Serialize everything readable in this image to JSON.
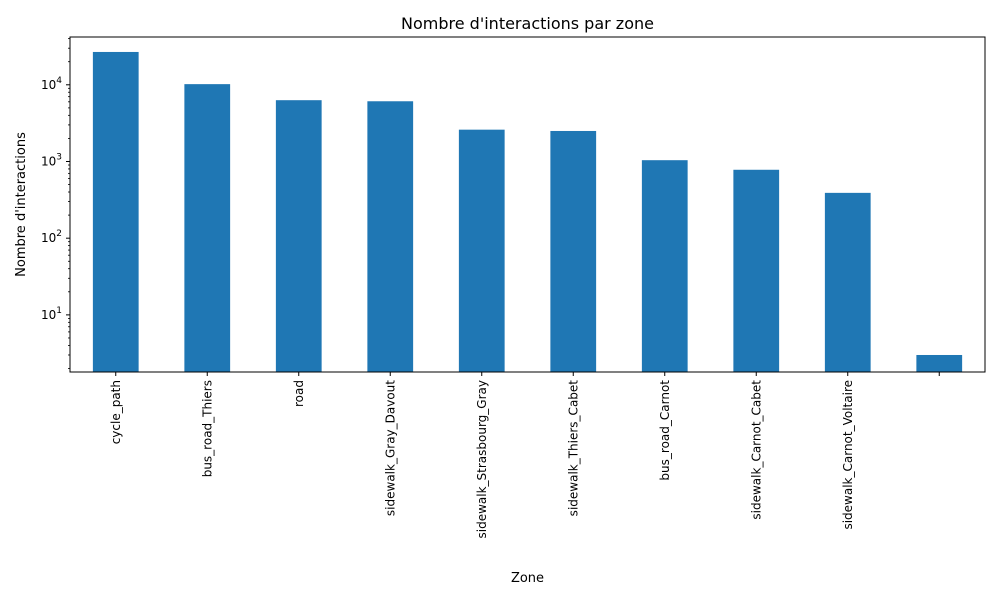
{
  "chart_data": {
    "type": "bar",
    "title": "Nombre d'interactions par zone",
    "xlabel": "Zone",
    "ylabel": "Nombre d'interactions",
    "yscale": "log",
    "ylim": [
      1.8,
      42000
    ],
    "grid": false,
    "legend": "none",
    "bar_color": "#1f77b4",
    "categories": [
      "cycle_path",
      "bus_road_Thiers",
      "road",
      "sidewalk_Gray_Davout",
      "sidewalk_Strasbourg_Gray",
      "sidewalk_Thiers_Cabet",
      "bus_road_Carnot",
      "sidewalk_Carnot_Cabet",
      "sidewalk_Carnot_Voltaire",
      ""
    ],
    "values": [
      26800,
      10200,
      6300,
      6100,
      2600,
      2500,
      1040,
      780,
      390,
      3
    ],
    "y_ticks": [
      {
        "value": 10,
        "base": "10",
        "exp": "1"
      },
      {
        "value": 100,
        "base": "10",
        "exp": "2"
      },
      {
        "value": 1000,
        "base": "10",
        "exp": "3"
      },
      {
        "value": 10000,
        "base": "10",
        "exp": "4"
      }
    ]
  }
}
